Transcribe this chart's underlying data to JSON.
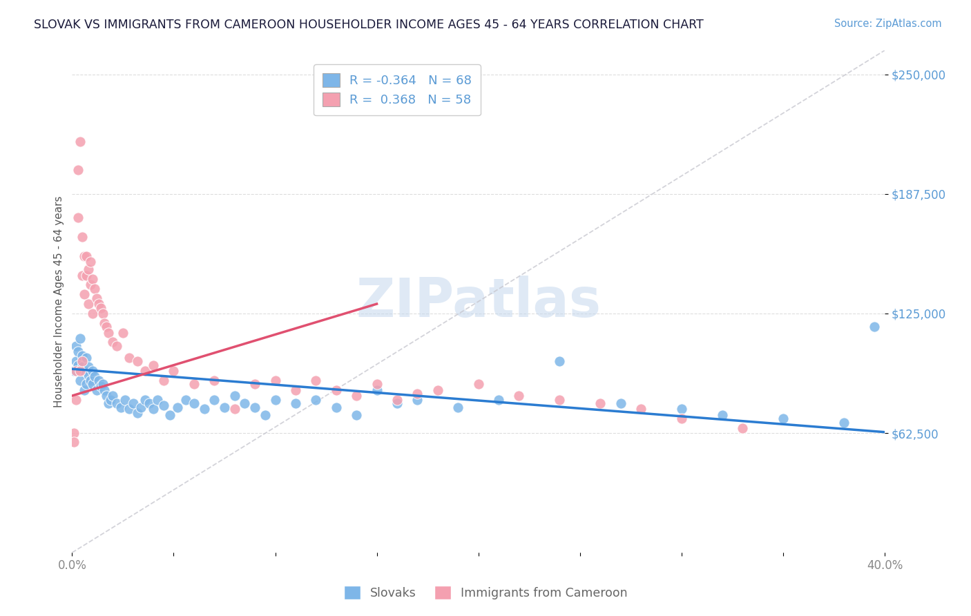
{
  "title": "SLOVAK VS IMMIGRANTS FROM CAMEROON HOUSEHOLDER INCOME AGES 45 - 64 YEARS CORRELATION CHART",
  "source": "Source: ZipAtlas.com",
  "ylabel": "Householder Income Ages 45 - 64 years",
  "xlim": [
    0.0,
    0.4
  ],
  "ylim": [
    0,
    262500
  ],
  "yticks": [
    62500,
    125000,
    187500,
    250000
  ],
  "ytick_labels": [
    "$62,500",
    "$125,000",
    "$187,500",
    "$250,000"
  ],
  "xtick_positions": [
    0.0,
    0.05,
    0.1,
    0.15,
    0.2,
    0.25,
    0.3,
    0.35,
    0.4
  ],
  "xtick_labels": [
    "0.0%",
    "",
    "",
    "",
    "",
    "",
    "",
    "",
    "40.0%"
  ],
  "blue_color": "#7EB6E8",
  "pink_color": "#F4A0B0",
  "blue_line_color": "#2B7CD1",
  "pink_line_color": "#E05070",
  "diag_color": "#C8C8D0",
  "legend_label_blue": "Slovaks",
  "legend_label_pink": "Immigrants from Cameroon",
  "watermark_text": "ZIPatlas",
  "title_color": "#1a1a3a",
  "source_color": "#5B9BD5",
  "axis_label_color": "#555555",
  "tick_label_color": "#5B9BD5",
  "bottom_legend_color": "#666666",
  "blue_r": "R = -0.364",
  "blue_n": "N = 68",
  "pink_r": "R =  0.368",
  "pink_n": "N = 58",
  "blue_scatter_x": [
    0.001,
    0.002,
    0.002,
    0.003,
    0.003,
    0.004,
    0.004,
    0.005,
    0.005,
    0.006,
    0.006,
    0.007,
    0.007,
    0.008,
    0.008,
    0.009,
    0.01,
    0.01,
    0.011,
    0.012,
    0.013,
    0.014,
    0.015,
    0.016,
    0.017,
    0.018,
    0.019,
    0.02,
    0.022,
    0.024,
    0.026,
    0.028,
    0.03,
    0.032,
    0.034,
    0.036,
    0.038,
    0.04,
    0.042,
    0.045,
    0.048,
    0.052,
    0.056,
    0.06,
    0.065,
    0.07,
    0.075,
    0.08,
    0.085,
    0.09,
    0.095,
    0.1,
    0.11,
    0.12,
    0.13,
    0.14,
    0.15,
    0.16,
    0.17,
    0.19,
    0.21,
    0.24,
    0.27,
    0.3,
    0.32,
    0.35,
    0.38,
    0.395
  ],
  "blue_scatter_y": [
    95000,
    108000,
    100000,
    105000,
    98000,
    112000,
    90000,
    97000,
    103000,
    85000,
    95000,
    88000,
    102000,
    93000,
    97000,
    90000,
    95000,
    88000,
    92000,
    85000,
    90000,
    87000,
    88000,
    85000,
    82000,
    78000,
    80000,
    82000,
    78000,
    76000,
    80000,
    75000,
    78000,
    73000,
    76000,
    80000,
    78000,
    75000,
    80000,
    77000,
    72000,
    76000,
    80000,
    78000,
    75000,
    80000,
    76000,
    82000,
    78000,
    76000,
    72000,
    80000,
    78000,
    80000,
    76000,
    72000,
    85000,
    78000,
    80000,
    76000,
    80000,
    100000,
    78000,
    75000,
    72000,
    70000,
    68000,
    118000
  ],
  "pink_scatter_x": [
    0.001,
    0.001,
    0.002,
    0.002,
    0.003,
    0.003,
    0.004,
    0.004,
    0.005,
    0.005,
    0.005,
    0.006,
    0.006,
    0.007,
    0.007,
    0.008,
    0.008,
    0.009,
    0.009,
    0.01,
    0.01,
    0.011,
    0.012,
    0.013,
    0.014,
    0.015,
    0.016,
    0.017,
    0.018,
    0.02,
    0.022,
    0.025,
    0.028,
    0.032,
    0.036,
    0.04,
    0.045,
    0.05,
    0.06,
    0.07,
    0.08,
    0.09,
    0.1,
    0.11,
    0.12,
    0.13,
    0.14,
    0.15,
    0.16,
    0.17,
    0.18,
    0.2,
    0.22,
    0.24,
    0.26,
    0.28,
    0.3,
    0.33
  ],
  "pink_scatter_y": [
    62500,
    58000,
    95000,
    80000,
    175000,
    200000,
    215000,
    95000,
    165000,
    145000,
    100000,
    155000,
    135000,
    145000,
    155000,
    148000,
    130000,
    152000,
    140000,
    143000,
    125000,
    138000,
    133000,
    130000,
    128000,
    125000,
    120000,
    118000,
    115000,
    110000,
    108000,
    115000,
    102000,
    100000,
    95000,
    98000,
    90000,
    95000,
    88000,
    90000,
    75000,
    88000,
    90000,
    85000,
    90000,
    85000,
    82000,
    88000,
    80000,
    83000,
    85000,
    88000,
    82000,
    80000,
    78000,
    75000,
    70000,
    65000
  ],
  "blue_trend_x": [
    0.0,
    0.4
  ],
  "blue_trend_y": [
    96000,
    63000
  ],
  "pink_trend_x": [
    0.0,
    0.15
  ],
  "pink_trend_y": [
    82000,
    130000
  ]
}
